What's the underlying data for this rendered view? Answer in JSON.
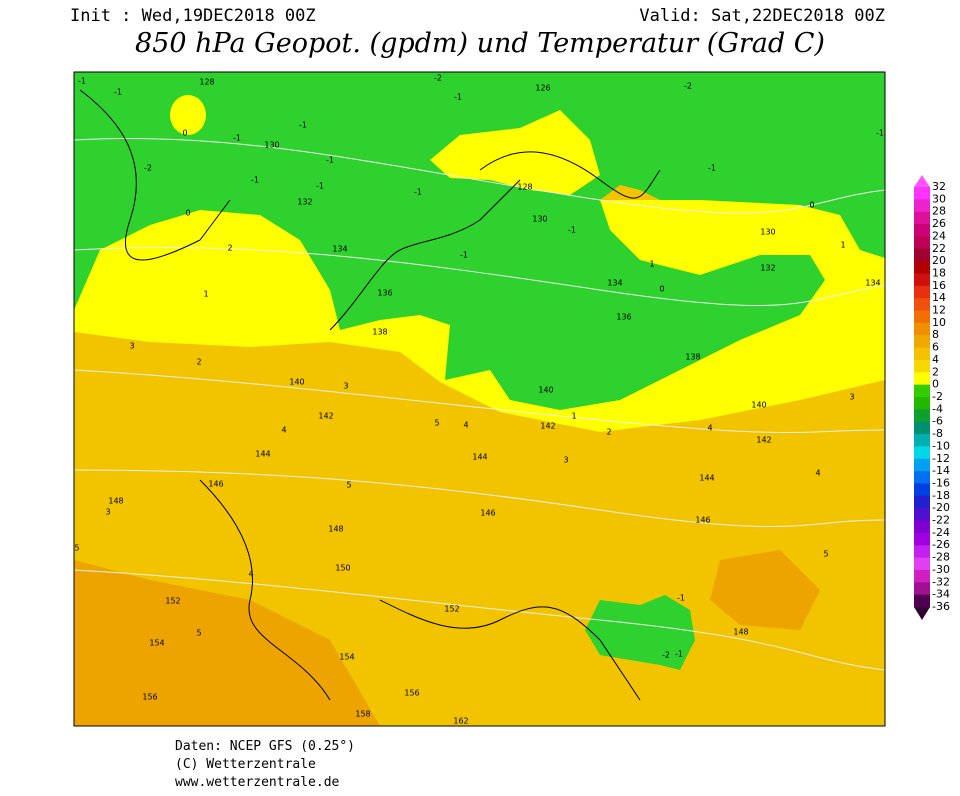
{
  "header": {
    "init": "Init : Wed,19DEC2018 00Z",
    "valid": "Valid: Sat,22DEC2018 00Z",
    "title": "850 hPa Geopot. (gpdm) und Temperatur (Grad C)"
  },
  "colorbar": {
    "ticks": [
      32,
      30,
      28,
      26,
      24,
      22,
      20,
      18,
      16,
      14,
      12,
      10,
      8,
      6,
      4,
      2,
      0,
      -2,
      -4,
      -6,
      -8,
      -10,
      -12,
      -14,
      -16,
      -18,
      -20,
      -22,
      -24,
      -26,
      -28,
      -30,
      -32,
      -34,
      -36
    ],
    "colors": [
      "#ff33ff",
      "#ee22cc",
      "#dd1199",
      "#cc0077",
      "#bb0055",
      "#a00030",
      "#b00000",
      "#d01010",
      "#e83010",
      "#f05010",
      "#f07000",
      "#f09000",
      "#f0a800",
      "#f5c000",
      "#f5d800",
      "#ffff00",
      "#33cc00",
      "#22b800",
      "#10a030",
      "#009070",
      "#00b0b0",
      "#00d8e8",
      "#00a0f0",
      "#0070f0",
      "#0040e0",
      "#2020d0",
      "#5010d0",
      "#8000d0",
      "#a000e0",
      "#c020f0",
      "#e040f0",
      "#d020c0",
      "#a01090",
      "#500050"
    ]
  },
  "map_labels": [
    "128",
    "126",
    "130",
    "128",
    "130",
    "130",
    "132",
    "134",
    "134",
    "132",
    "134",
    "136",
    "136",
    "138",
    "138",
    "140",
    "140",
    "140",
    "142",
    "142",
    "142",
    "144",
    "144",
    "144",
    "146",
    "146",
    "146",
    "148",
    "148",
    "150",
    "152",
    "152",
    "154",
    "154",
    "156",
    "156",
    "158",
    "162",
    "148",
    "-1",
    "-1",
    "-2",
    "0",
    "0",
    "-1",
    "-1",
    "-1",
    "-1",
    "-1",
    "-1",
    "-2",
    "-1",
    "-2",
    "-1",
    "-1",
    "0",
    "1",
    "-1",
    "-1",
    "1",
    "0",
    "1",
    "2",
    "3",
    "2",
    "3",
    "4",
    "4",
    "5",
    "3",
    "2",
    "1",
    "4",
    "3",
    "4",
    "5",
    "5",
    "4",
    "5",
    "5",
    "-1",
    "-2",
    "-1",
    "3"
  ],
  "footer": [
    "Daten: NCEP GFS (0.25°)",
    "(C) Wetterzentrale",
    "www.wetterzentrale.de"
  ]
}
